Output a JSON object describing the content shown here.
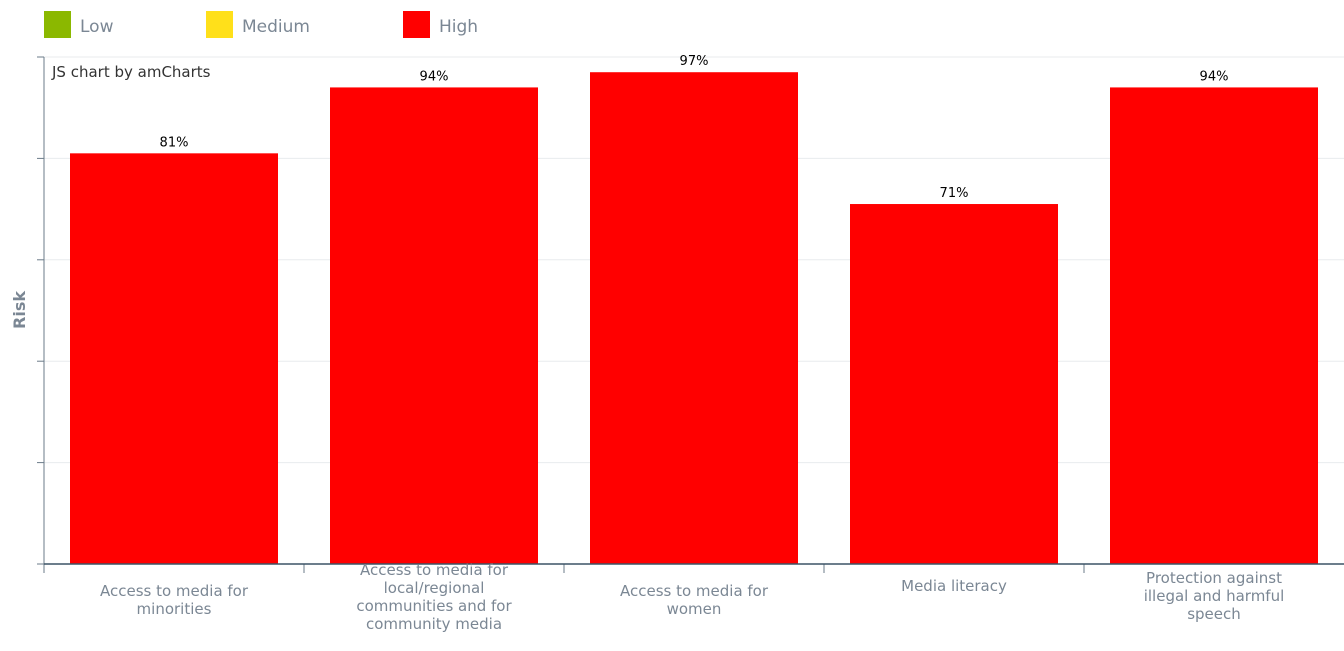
{
  "chart_data": {
    "type": "bar",
    "title": "",
    "xlabel": "",
    "ylabel": "Risk",
    "ylim": [
      0,
      100
    ],
    "grid": true,
    "legend": {
      "position": "top-left",
      "items": [
        {
          "label": "Low",
          "color": "#8bb800"
        },
        {
          "label": "Medium",
          "color": "#ffe01a"
        },
        {
          "label": "High",
          "color": "#ff0000"
        }
      ]
    },
    "categories": [
      [
        "Access to media for",
        "minorities"
      ],
      [
        "Access to media for",
        "local/regional",
        "communities and for",
        "community media"
      ],
      [
        "Access to media for",
        "women"
      ],
      [
        "Media literacy"
      ],
      [
        "Protection against",
        "illegal and harmful",
        "speech"
      ]
    ],
    "values": [
      81,
      94,
      97,
      71,
      94
    ],
    "value_labels": [
      "81%",
      "94%",
      "97%",
      "71%",
      "94%"
    ],
    "bar_color": "#ff0000"
  },
  "credit": "JS chart by amCharts"
}
